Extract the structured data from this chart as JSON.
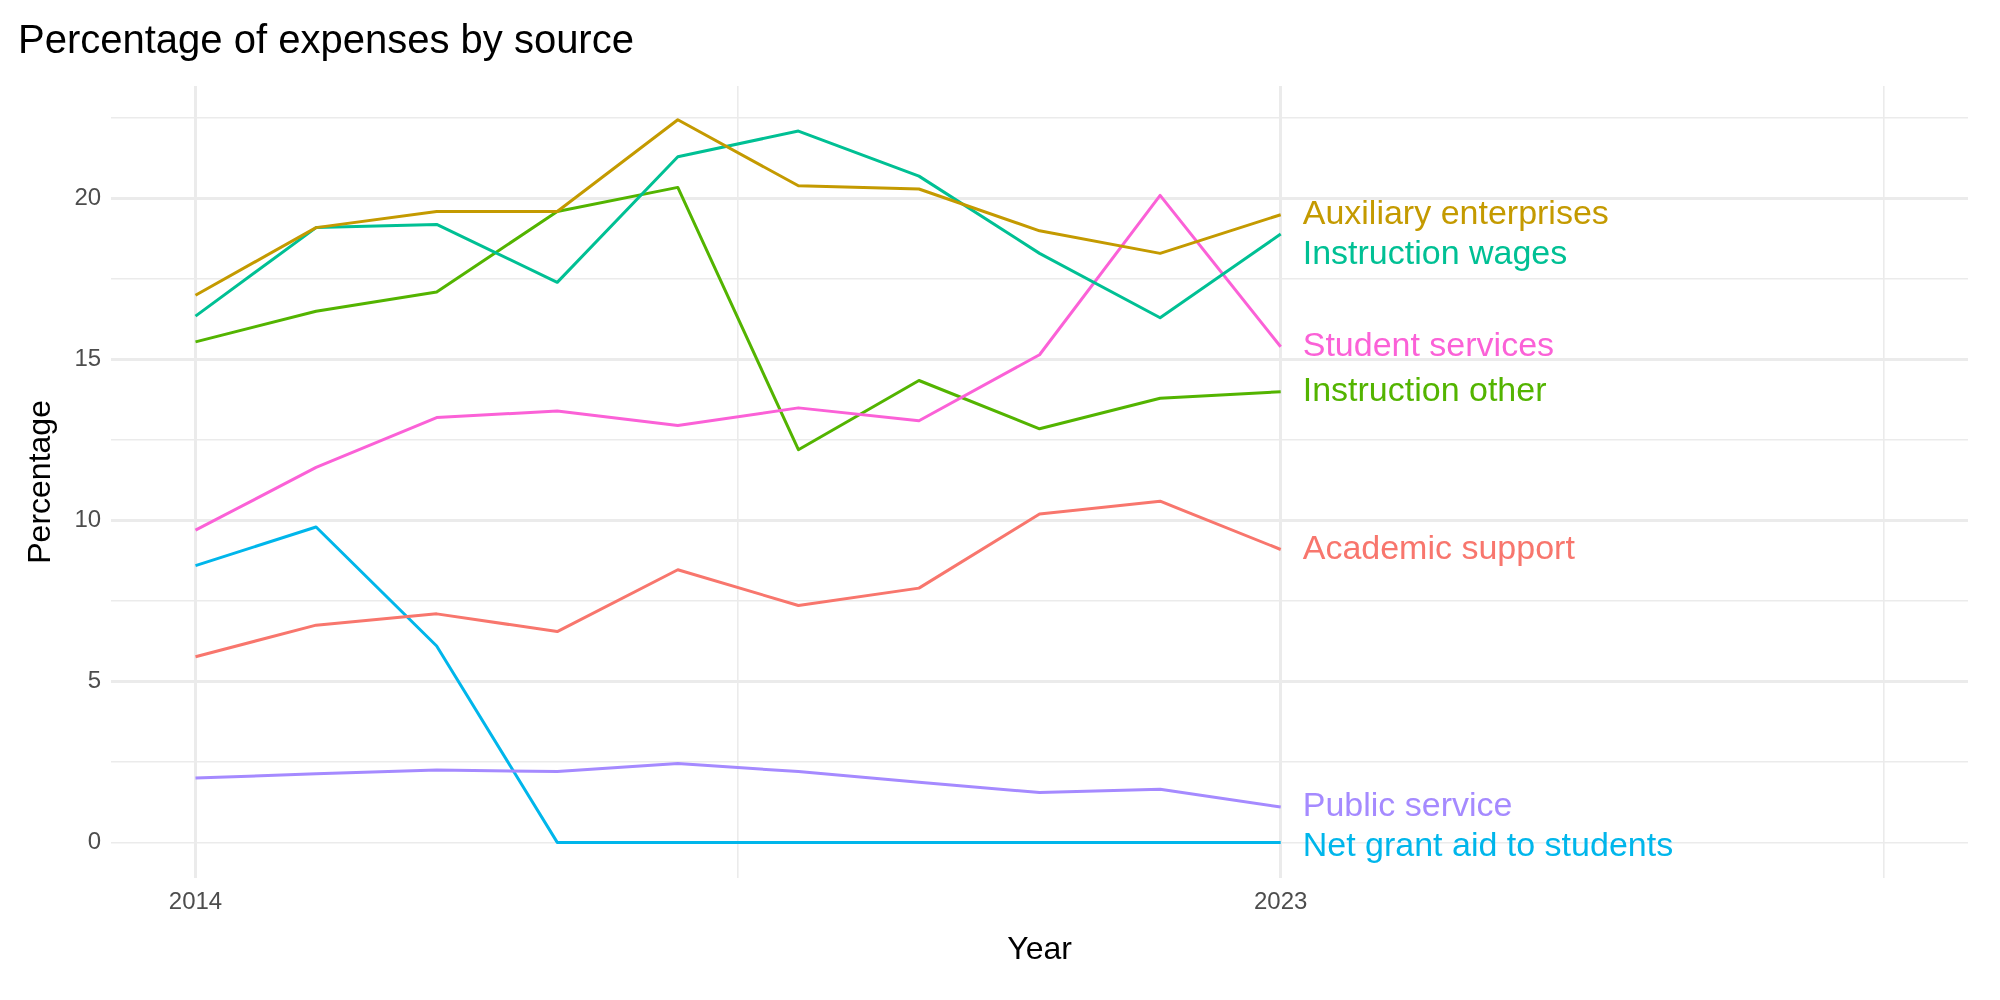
{
  "chart_data": {
    "type": "line",
    "title": "Percentage of expenses by source",
    "xlabel": "Year",
    "ylabel": "Percentage",
    "x": [
      2014,
      2015,
      2016,
      2017,
      2018,
      2019,
      2020,
      2021,
      2022,
      2023
    ],
    "xlim": [
      2013.3,
      2028.7
    ],
    "xticks": [
      2014,
      {
        "value": 2018.5,
        "label": null
      },
      2023,
      {
        "value": 2028,
        "label": null
      }
    ],
    "ylim": [
      -1.1,
      23.5
    ],
    "yticks": [
      0,
      {
        "value": 2.5,
        "label": null
      },
      5,
      {
        "value": 7.5,
        "label": null
      },
      10,
      {
        "value": 12.5,
        "label": null
      },
      15,
      {
        "value": 17.5,
        "label": null
      },
      20,
      {
        "value": 22.5,
        "label": null
      }
    ],
    "grid": true,
    "legend": false,
    "marker": "none",
    "line_style": "solid",
    "series": [
      {
        "name": "Auxiliary enterprises",
        "color": "#c49a00",
        "values": [
          17.0,
          19.1,
          19.6,
          19.6,
          22.45,
          20.4,
          20.3,
          19.0,
          18.3,
          19.5
        ]
      },
      {
        "name": "Instruction wages",
        "color": "#00c094",
        "values": [
          16.35,
          19.1,
          19.2,
          17.4,
          21.3,
          22.1,
          20.7,
          18.3,
          16.3,
          18.9
        ]
      },
      {
        "name": "Student services",
        "color": "#fb61d7",
        "values": [
          9.7,
          11.65,
          13.2,
          13.4,
          12.95,
          13.5,
          13.1,
          15.15,
          20.1,
          15.4
        ]
      },
      {
        "name": "Instruction other",
        "color": "#53b400",
        "values": [
          15.55,
          16.5,
          17.1,
          19.6,
          20.35,
          12.2,
          14.35,
          12.85,
          13.8,
          14.0
        ]
      },
      {
        "name": "Academic support",
        "color": "#f8766d",
        "values": [
          5.77,
          6.75,
          7.1,
          6.55,
          8.47,
          7.36,
          7.9,
          10.2,
          10.6,
          9.1
        ]
      },
      {
        "name": "Public service",
        "color": "#a58aff",
        "values": [
          2.0,
          2.13,
          2.25,
          2.2,
          2.45,
          2.2,
          1.87,
          1.55,
          1.65,
          1.1
        ]
      },
      {
        "name": "Net grant aid to students",
        "color": "#00b6eb",
        "values": [
          8.6,
          9.8,
          6.1,
          0,
          0,
          0,
          0,
          0,
          0,
          0
        ]
      }
    ]
  }
}
